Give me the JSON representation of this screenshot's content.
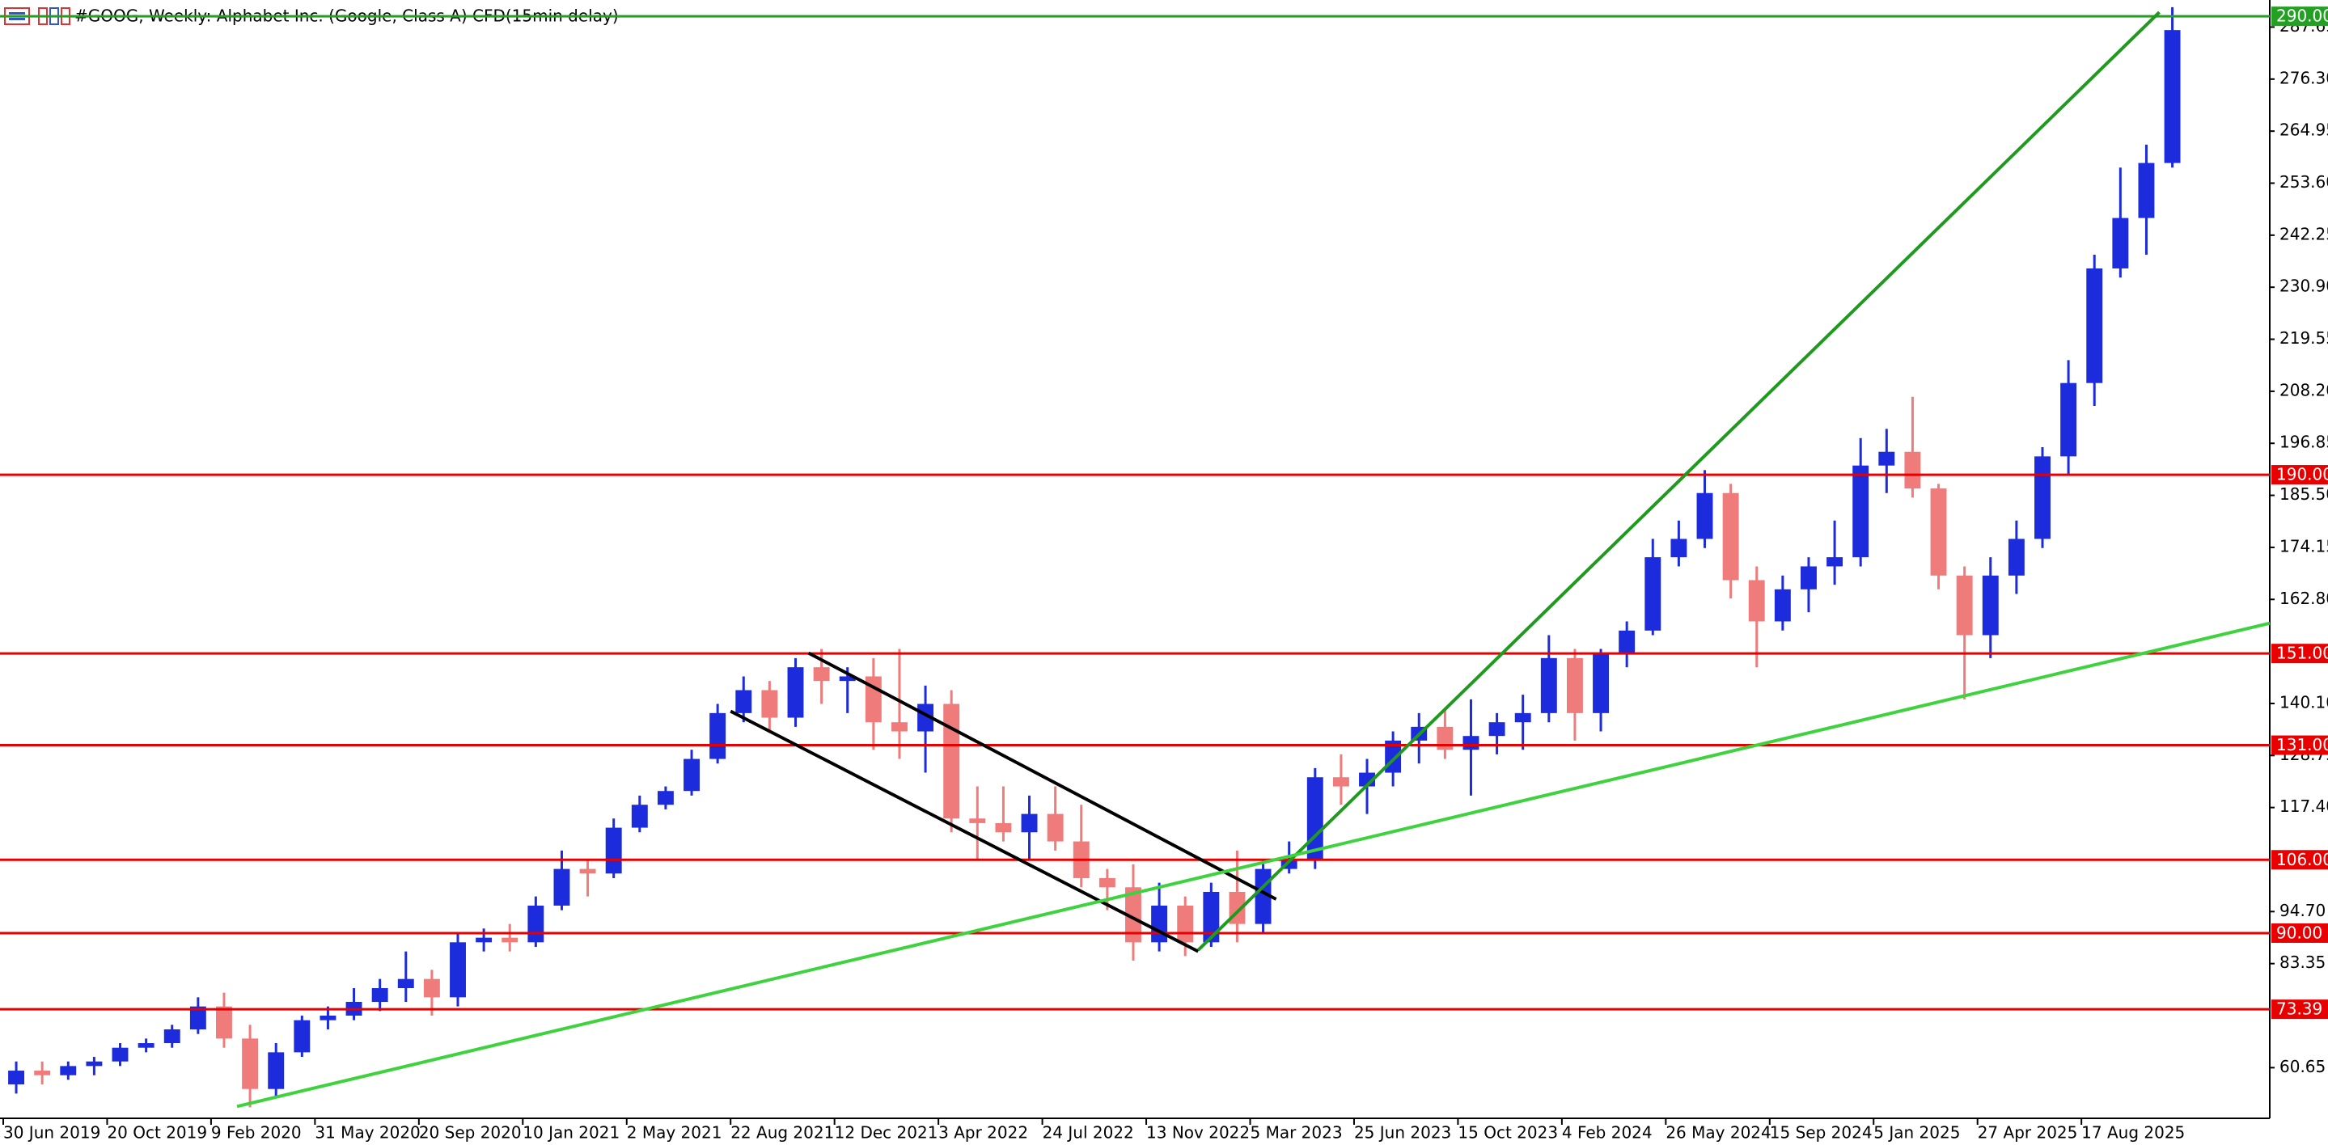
{
  "chart_data": {
    "type": "candlestick",
    "title": "#GOOG, Weekly:  Alphabet Inc. (Google, Class A) CFD(15min delay)",
    "up_color": "#1c2bdc",
    "down_color": "#ef7b7b",
    "xlim": [
      "30 Jun 2019",
      "8 Mar 2026"
    ],
    "ylim": [
      49.6,
      292.85
    ],
    "xticks": [
      "30 Jun 2019",
      "20 Oct 2019",
      "9 Feb 2020",
      "31 May 2020",
      "20 Sep 2020",
      "10 Jan 2021",
      "2 May 2021",
      "22 Aug 2021",
      "12 Dec 2021",
      "3 Apr 2022",
      "24 Jul 2022",
      "13 Nov 2022",
      "5 Mar 2023",
      "25 Jun 2023",
      "15 Oct 2023",
      "4 Feb 2024",
      "26 May 2024",
      "15 Sep 2024",
      "5 Jan 2025",
      "27 Apr 2025",
      "17 Aug 2025"
    ],
    "yticks": [
      60.65,
      83.35,
      {
        "value": 94.7,
        "label": "94.70"
      },
      {
        "value": 117.4,
        "label": "117.40"
      },
      128.75,
      {
        "value": 140.1,
        "label": "140.10"
      },
      {
        "value": 162.8,
        "label": "162.80"
      },
      174.15,
      {
        "value": 185.5,
        "label": "185.50"
      },
      196.85,
      {
        "value": 208.2,
        "label": "208.20"
      },
      219.55,
      {
        "value": 230.9,
        "label": "230.90"
      },
      242.25,
      {
        "value": 253.6,
        "label": "253.60"
      },
      264.95,
      {
        "value": 276.3,
        "label": "276.30"
      },
      287.65
    ],
    "levels": [
      {
        "value": 290,
        "label": "290.00"
      },
      {
        "value": 190,
        "label": "190.00"
      },
      {
        "value": 151,
        "label": "151.00"
      },
      {
        "value": 131,
        "label": "131.00"
      },
      {
        "value": 106,
        "label": "106.00"
      },
      {
        "value": 90,
        "label": "90.00"
      },
      73.39
    ],
    "level_colors": [
      "#22a022",
      "#e80000",
      "#e80000",
      "#e80000",
      "#e80000",
      "#e80000",
      "#e80000"
    ],
    "trendlines": [
      {
        "color": "#000000",
        "x": [
          "14 Nov 2021",
          "2 Apr 2023"
        ],
        "y": [
          151.1,
          97.4
        ]
      },
      {
        "color": "#000000",
        "x": [
          "22 Aug 2021",
          "8 Jan 2023"
        ],
        "y": [
          138.4,
          86.0
        ]
      },
      {
        "color": "#1f9a1f",
        "x": [
          "8 Jan 2023",
          "9 Nov 2025"
        ],
        "y": [
          86.3,
          290.9
        ]
      },
      {
        "color": "#3fd23f",
        "x": [
          "8 Mar 2020",
          "8 Mar 2026"
        ],
        "y": [
          52.2,
          157.6
        ]
      }
    ],
    "x": [
      "30 Jun 2019",
      "28 Jul 2019",
      "25 Aug 2019",
      "22 Sep 2019",
      "20 Oct 2019",
      "17 Nov 2019",
      "15 Dec 2019",
      "12 Jan 2020",
      "9 Feb 2020",
      "8 Mar 2020",
      "5 Apr 2020",
      "3 May 2020",
      "31 May 2020",
      "28 Jun 2020",
      "26 Jul 2020",
      "23 Aug 2020",
      "20 Sep 2020",
      "18 Oct 2020",
      "15 Nov 2020",
      "13 Dec 2020",
      "10 Jan 2021",
      "7 Feb 2021",
      "7 Mar 2021",
      "4 Apr 2021",
      "2 May 2021",
      "30 May 2021",
      "27 Jun 2021",
      "25 Jul 2021",
      "22 Aug 2021",
      "19 Sep 2021",
      "17 Oct 2021",
      "14 Nov 2021",
      "12 Dec 2021",
      "9 Jan 2022",
      "6 Feb 2022",
      "6 Mar 2022",
      "3 Apr 2022",
      "1 May 2022",
      "29 May 2022",
      "26 Jun 2022",
      "24 Jul 2022",
      "21 Aug 2022",
      "18 Sep 2022",
      "16 Oct 2022",
      "13 Nov 2022",
      "11 Dec 2022",
      "8 Jan 2023",
      "5 Feb 2023",
      "5 Mar 2023",
      "2 Apr 2023",
      "30 Apr 2023",
      "28 May 2023",
      "25 Jun 2023",
      "23 Jul 2023",
      "20 Aug 2023",
      "17 Sep 2023",
      "15 Oct 2023",
      "12 Nov 2023",
      "10 Dec 2023",
      "7 Jan 2024",
      "4 Feb 2024",
      "3 Mar 2024",
      "31 Mar 2024",
      "28 Apr 2024",
      "26 May 2024",
      "23 Jun 2024",
      "21 Jul 2024",
      "18 Aug 2024",
      "15 Sep 2024",
      "13 Oct 2024",
      "10 Nov 2024",
      "8 Dec 2024",
      "5 Jan 2025",
      "2 Feb 2025",
      "2 Mar 2025",
      "30 Mar 2025",
      "27 Apr 2025",
      "25 May 2025",
      "22 Jun 2025",
      "20 Jul 2025",
      "17 Aug 2025",
      "14 Sep 2025",
      "12 Oct 2025",
      "9 Nov 2025"
    ],
    "open": [
      57,
      60,
      59,
      61,
      62,
      65,
      66,
      69,
      74,
      67,
      56,
      64,
      71,
      72,
      75,
      78,
      80,
      76,
      88,
      89,
      88,
      96,
      104,
      103,
      113,
      118,
      121,
      128,
      138,
      143,
      137,
      148,
      145,
      146,
      136,
      134,
      140,
      115,
      114,
      112,
      116,
      110,
      102,
      100,
      88,
      96,
      88,
      99,
      92,
      104,
      106,
      124,
      122,
      125,
      132,
      135,
      130,
      133,
      136,
      138,
      150,
      138,
      151,
      156,
      172,
      176,
      186,
      167,
      158,
      165,
      170,
      172,
      192,
      195,
      187,
      168,
      155,
      168,
      176,
      194,
      210,
      235,
      246,
      258
    ],
    "high": [
      62,
      62,
      62,
      63,
      66,
      67,
      70,
      76,
      77,
      70,
      66,
      72,
      74,
      78,
      80,
      86,
      82,
      90,
      91,
      92,
      98,
      108,
      106,
      115,
      120,
      122,
      130,
      140,
      146,
      145,
      150,
      152,
      148,
      150,
      152,
      144,
      143,
      122,
      122,
      120,
      122,
      118,
      104,
      105,
      101,
      98,
      101,
      108,
      106,
      110,
      126,
      129,
      128,
      134,
      138,
      139,
      141,
      138,
      142,
      155,
      152,
      152,
      158,
      176,
      180,
      191,
      188,
      170,
      168,
      172,
      180,
      198,
      200,
      207,
      188,
      170,
      172,
      180,
      196,
      215,
      238,
      257,
      262,
      292
    ],
    "low": [
      55,
      57,
      58,
      59,
      61,
      64,
      65,
      68,
      65,
      52,
      54,
      63,
      69,
      71,
      73,
      75,
      72,
      74,
      86,
      86,
      87,
      95,
      98,
      102,
      112,
      117,
      120,
      127,
      136,
      134,
      135,
      140,
      138,
      130,
      128,
      125,
      112,
      106,
      110,
      106,
      108,
      100,
      95,
      84,
      86,
      85,
      87,
      88,
      90,
      103,
      104,
      118,
      116,
      122,
      127,
      128,
      120,
      129,
      130,
      136,
      132,
      134,
      148,
      155,
      170,
      174,
      163,
      148,
      156,
      160,
      166,
      170,
      186,
      185,
      165,
      141,
      150,
      164,
      174,
      190,
      205,
      233,
      238,
      257
    ],
    "close": [
      60,
      59,
      61,
      62,
      65,
      66,
      69,
      74,
      67,
      56,
      64,
      71,
      72,
      75,
      78,
      80,
      76,
      88,
      89,
      88,
      96,
      104,
      103,
      113,
      118,
      121,
      128,
      138,
      143,
      137,
      148,
      145,
      146,
      136,
      134,
      140,
      115,
      114,
      112,
      116,
      110,
      102,
      100,
      88,
      96,
      88,
      99,
      92,
      104,
      106,
      124,
      122,
      125,
      132,
      135,
      130,
      133,
      136,
      138,
      150,
      138,
      151,
      156,
      172,
      176,
      186,
      167,
      158,
      165,
      170,
      172,
      192,
      195,
      187,
      168,
      155,
      168,
      176,
      194,
      210,
      235,
      246,
      258,
      287
    ]
  }
}
